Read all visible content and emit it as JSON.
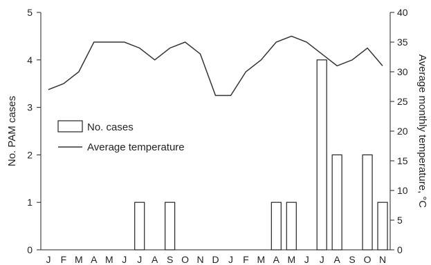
{
  "chart_data": {
    "type": "bar+line",
    "categories": [
      "J",
      "F",
      "M",
      "A",
      "M",
      "J",
      "J",
      "A",
      "S",
      "O",
      "N",
      "D",
      "J",
      "F",
      "M",
      "A",
      "M",
      "J",
      "J",
      "A",
      "S",
      "O",
      "N"
    ],
    "series": [
      {
        "name": "No. cases",
        "type": "bar",
        "axis": "left",
        "values": [
          0,
          0,
          0,
          0,
          0,
          0,
          1,
          0,
          1,
          0,
          0,
          0,
          0,
          0,
          0,
          1,
          1,
          0,
          4,
          2,
          0,
          2,
          1
        ]
      },
      {
        "name": "Average temperature",
        "type": "line",
        "axis": "right",
        "values": [
          27,
          28,
          30,
          35,
          35,
          35,
          34,
          32,
          34,
          35,
          33,
          26,
          26,
          30,
          32,
          35,
          36,
          35,
          33,
          31,
          32,
          34,
          31
        ]
      }
    ],
    "ylabel": "No. PAM cases",
    "y2label": "Average monthly temperature, °C",
    "ylim": [
      0,
      5
    ],
    "y2lim": [
      0,
      40
    ],
    "yticks": [
      "0",
      "1",
      "2",
      "3",
      "4",
      "5"
    ],
    "y2ticks": [
      "0",
      "5",
      "10",
      "15",
      "20",
      "25",
      "30",
      "35",
      "40"
    ],
    "legend_position": "left-middle",
    "grid": false
  },
  "colors": {
    "axis": "#222222",
    "bar_fill": "#ffffff",
    "bar_stroke": "#222222",
    "line": "#333333"
  }
}
